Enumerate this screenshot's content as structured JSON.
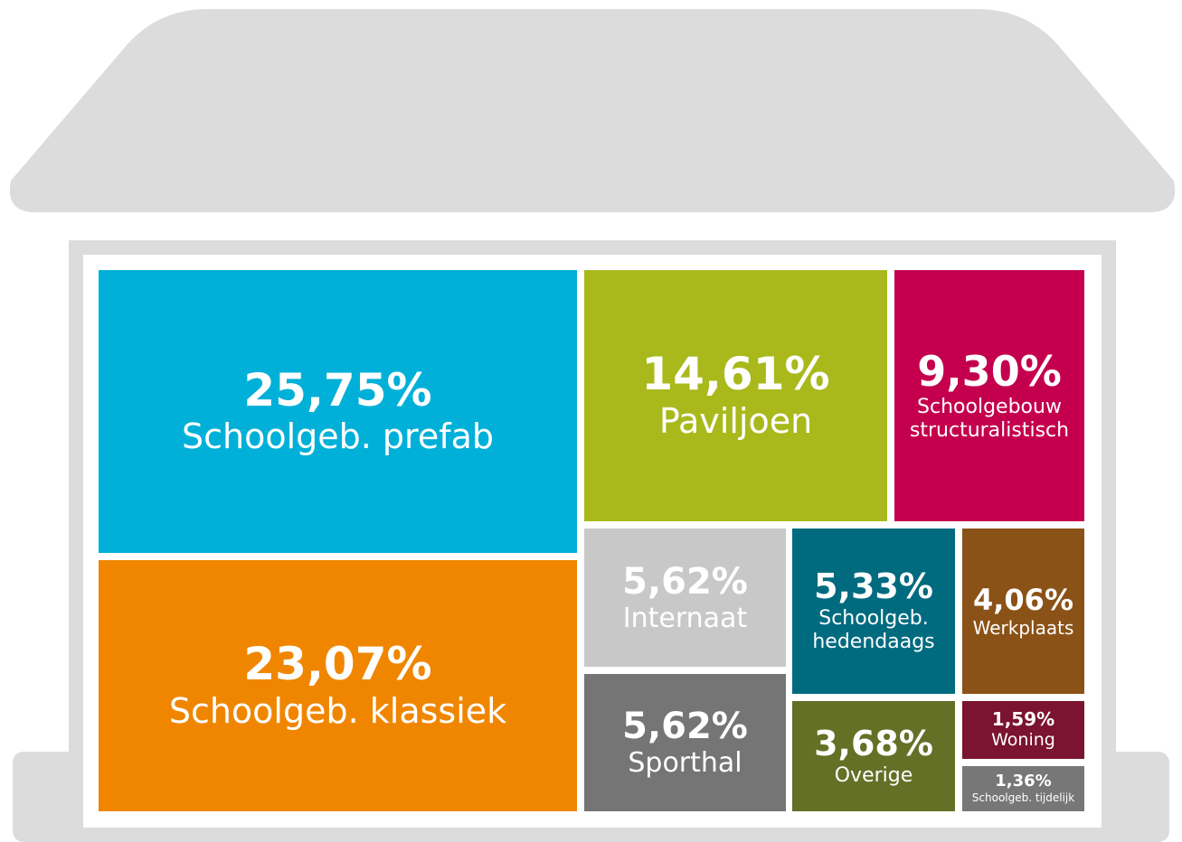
{
  "chart_data": {
    "type": "treemap",
    "categories": [
      "Schoolgeb. prefab",
      "Schoolgeb. klassiek",
      "Paviljoen",
      "Schoolgebouw structuralistisch",
      "Internaat",
      "Sporthal",
      "Schoolgeb. hedendaags",
      "Werkplaats",
      "Overige",
      "Woning",
      "Schoolgeb. tijdelijk"
    ],
    "values": [
      25.75,
      23.07,
      14.61,
      9.3,
      5.62,
      5.62,
      5.33,
      4.06,
      3.68,
      1.59,
      1.36
    ],
    "value_labels": [
      "25,75%",
      "23,07%",
      "14,61%",
      "9,30%",
      "5,62%",
      "5,62%",
      "5,33%",
      "4,06%",
      "3,68%",
      "1,59%",
      "1,36%"
    ],
    "colors": [
      "#00b0d8",
      "#f08600",
      "#a9b91c",
      "#c4004e",
      "#c8c8c8",
      "#757575",
      "#006b7f",
      "#8b5217",
      "#647026",
      "#7a1430",
      "#777777"
    ]
  }
}
